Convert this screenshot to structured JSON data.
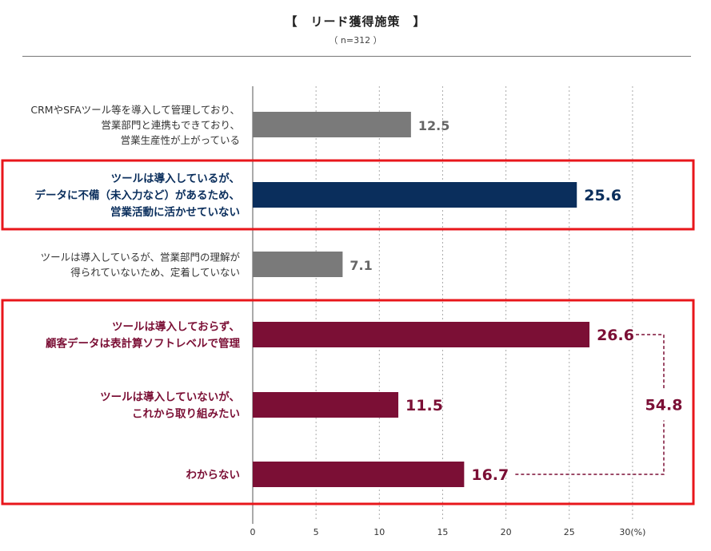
{
  "chart_data": {
    "type": "bar",
    "orientation": "horizontal",
    "title": "【　リード獲得施策　】",
    "subtitle": "（ n=312 ）",
    "categories": [
      [
        "CRMやSFAツール等を導入して管理しており、",
        "営業部門と連携もできており、",
        "営業生産性が上がっている"
      ],
      [
        "ツールは導入しているが、",
        "データに不備（未入力など）があるため、",
        "営業活動に活かせていない"
      ],
      [
        "ツールは導入しているが、営業部門の理解が",
        "得られていないため、定着していない"
      ],
      [
        "ツールは導入しておらず、",
        "顧客データは表計算ソフトレベルで管理"
      ],
      [
        "ツールは導入していないが、",
        "これから取り組みたい"
      ],
      [
        "わからない"
      ]
    ],
    "values": [
      12.5,
      25.6,
      7.1,
      26.6,
      11.5,
      16.7
    ],
    "value_labels": [
      "12.5",
      "25.6",
      "7.1",
      "26.6",
      "11.5",
      "16.7"
    ],
    "xlim": [
      0,
      30
    ],
    "xticks": [
      "0",
      "5",
      "10",
      "15",
      "20",
      "25",
      "30(%)"
    ],
    "xtick_values": [
      0,
      5,
      10,
      15,
      20,
      25,
      30
    ],
    "grid": true,
    "bar_colors": [
      "#7a7a7a",
      "#0a2e5c",
      "#7a7a7a",
      "#7b0f35",
      "#7b0f35",
      "#7b0f35"
    ],
    "label_styles": [
      "normal",
      "blue",
      "normal",
      "red",
      "red",
      "red"
    ],
    "highlight_color": "#e8161b",
    "highlight_groups": [
      [
        1
      ],
      [
        3,
        4,
        5
      ]
    ],
    "sum_label": "54.8",
    "sum_members": [
      3,
      5
    ]
  }
}
